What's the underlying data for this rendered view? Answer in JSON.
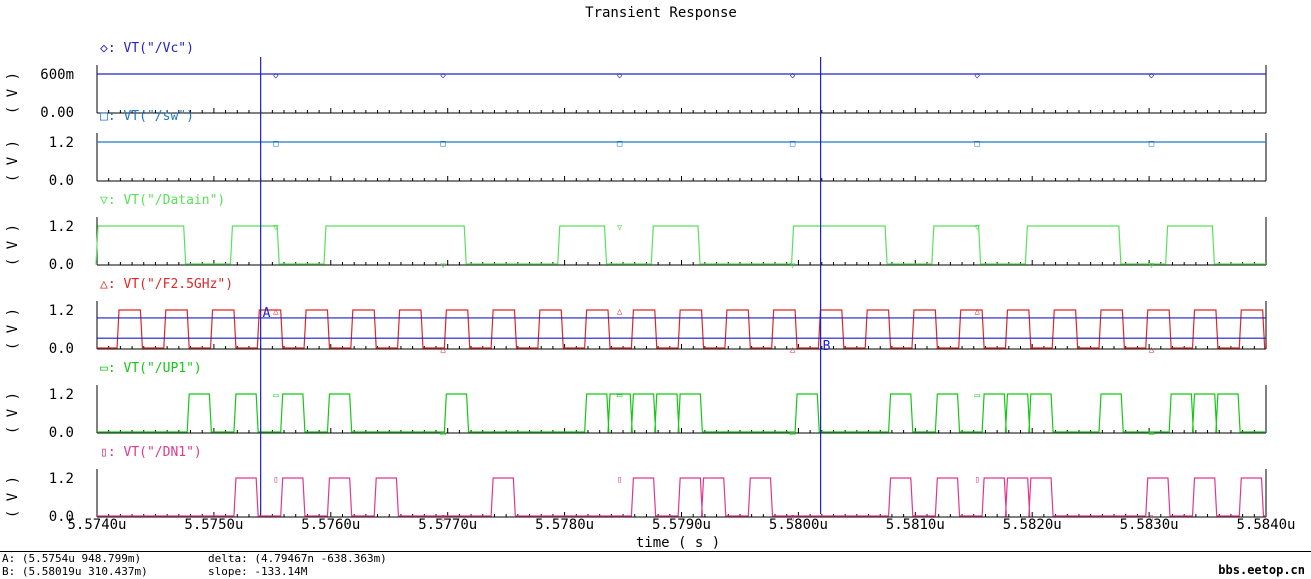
{
  "chart_data": {
    "type": "line",
    "title": "Transient Response",
    "xlabel": "time ( s )",
    "x_unit": "s",
    "xlim": [
      5.574e-06,
      5.584e-06
    ],
    "x_ticks": [
      {
        "value": 5.574e-06,
        "label": "5.5740u"
      },
      {
        "value": 5.575e-06,
        "label": "5.5750u"
      },
      {
        "value": 5.576e-06,
        "label": "5.5760u"
      },
      {
        "value": 5.577e-06,
        "label": "5.5770u"
      },
      {
        "value": 5.578e-06,
        "label": "5.5780u"
      },
      {
        "value": 5.579e-06,
        "label": "5.5790u"
      },
      {
        "value": 5.58e-06,
        "label": "5.5800u"
      },
      {
        "value": 5.581e-06,
        "label": "5.5810u"
      },
      {
        "value": 5.582e-06,
        "label": "5.5820u"
      },
      {
        "value": 5.583e-06,
        "label": "5.5830u"
      },
      {
        "value": 5.584e-06,
        "label": "5.5840u"
      }
    ],
    "panels": [
      {
        "name": "VT(\"/Vc\")",
        "marker": "◇",
        "color": "#2323c8",
        "ylabel": "(V)",
        "ylim": [
          0,
          0.6
        ],
        "ytick_labels": [
          "600m",
          "0.00"
        ],
        "level": 0.948,
        "markers_at_us": [
          5.57553,
          5.57696,
          5.57847,
          5.57995,
          5.58153,
          5.58302
        ]
      },
      {
        "name": "VT(\"/sw\")",
        "marker": "□",
        "color": "#1e78c8",
        "ylabel": "(V)",
        "ylim": [
          0,
          1.2
        ],
        "ytick_labels": [
          "1.2",
          "0.0"
        ],
        "level": 1.2,
        "markers_at_us": [
          5.57553,
          5.57696,
          5.57847,
          5.57995,
          5.58153,
          5.58302
        ]
      },
      {
        "name": "VT(\"/Datain\")",
        "marker": "▽",
        "color": "#5ae15a",
        "ylabel": "(V)",
        "ylim": [
          0,
          1.2
        ],
        "ytick_labels": [
          "1.2",
          "0.0"
        ],
        "pulses_us": [
          [
            5.574,
            5.57475
          ],
          [
            5.57515,
            5.57555
          ],
          [
            5.57595,
            5.57715
          ],
          [
            5.57795,
            5.57835
          ],
          [
            5.57875,
            5.57915
          ],
          [
            5.57995,
            5.58075
          ],
          [
            5.58115,
            5.58155
          ],
          [
            5.58195,
            5.58275
          ],
          [
            5.58315,
            5.58355
          ]
        ],
        "markers_at_us": [
          5.57553,
          5.57696,
          5.57847,
          5.57995,
          5.58153,
          5.58302
        ]
      },
      {
        "name": "VT(\"/F2.5GHz\")",
        "marker": "△",
        "color": "#dc2828",
        "ylabel": "(V)",
        "ylim": [
          0,
          1.2
        ],
        "ytick_labels": [
          "1.2",
          "0.0"
        ],
        "clock": {
          "first_rise_us": 5.57418,
          "period_ns": 0.4,
          "high_ns": 0.2
        },
        "markers_at_us": [
          5.57553,
          5.57696,
          5.57847,
          5.57995,
          5.58153,
          5.58302
        ]
      },
      {
        "name": "VT(\"/UP1\")",
        "marker": "▭",
        "color": "#14c814",
        "ylabel": "(V)",
        "ylim": [
          0,
          1.2
        ],
        "ytick_labels": [
          "1.2",
          "0.0"
        ],
        "pulses_us": [
          [
            5.57478,
            5.57497
          ],
          [
            5.57518,
            5.57537
          ],
          [
            5.57558,
            5.57577
          ],
          [
            5.57598,
            5.57617
          ],
          [
            5.57698,
            5.57717
          ],
          [
            5.57818,
            5.57837
          ],
          [
            5.57838,
            5.57857
          ],
          [
            5.57858,
            5.57877
          ],
          [
            5.57878,
            5.57897
          ],
          [
            5.57898,
            5.57917
          ],
          [
            5.57998,
            5.58017
          ],
          [
            5.58078,
            5.58097
          ],
          [
            5.58118,
            5.58137
          ],
          [
            5.58158,
            5.58177
          ],
          [
            5.58178,
            5.58197
          ],
          [
            5.58198,
            5.58217
          ],
          [
            5.58258,
            5.58277
          ],
          [
            5.58318,
            5.58337
          ],
          [
            5.58338,
            5.58357
          ],
          [
            5.58358,
            5.58377
          ]
        ],
        "markers_at_us": [
          5.57553,
          5.57696,
          5.57847,
          5.57995,
          5.58153,
          5.58302
        ]
      },
      {
        "name": "VT(\"/DN1\")",
        "marker": "▯",
        "color": "#e1378c",
        "ylabel": "(V)",
        "ylim": [
          0,
          1.2
        ],
        "ytick_labels": [
          "1.2",
          "0.0"
        ],
        "pulses_us": [
          [
            5.57518,
            5.57537
          ],
          [
            5.57558,
            5.57577
          ],
          [
            5.57598,
            5.57617
          ],
          [
            5.57638,
            5.57657
          ],
          [
            5.57738,
            5.57757
          ],
          [
            5.57858,
            5.57877
          ],
          [
            5.57898,
            5.57917
          ],
          [
            5.57918,
            5.57937
          ],
          [
            5.57958,
            5.57977
          ],
          [
            5.58078,
            5.58097
          ],
          [
            5.58118,
            5.58137
          ],
          [
            5.58158,
            5.58177
          ],
          [
            5.58178,
            5.58197
          ],
          [
            5.58198,
            5.58217
          ],
          [
            5.58298,
            5.58317
          ],
          [
            5.58338,
            5.58357
          ],
          [
            5.58378,
            5.58397
          ]
        ],
        "markers_at_us": [
          5.57553,
          5.57696,
          5.57847,
          5.57995,
          5.58153,
          5.58302
        ]
      }
    ],
    "cursors": [
      {
        "label": "A",
        "x_us": 5.5754,
        "y": 0.948799,
        "color": "#1e1ec8"
      },
      {
        "label": "B",
        "x_us": 5.58019,
        "y": 0.310437,
        "color": "#1e1ec8"
      }
    ],
    "grid": false,
    "legend": "top-left of each panel"
  },
  "status": {
    "cursor_a": "A: (5.5754u 948.799m)",
    "cursor_b": "B: (5.58019u 310.437m)",
    "delta": "delta: (4.79467n -638.363m)",
    "slope": "slope: -133.14M",
    "watermark": "bbs.eetop.cn"
  }
}
